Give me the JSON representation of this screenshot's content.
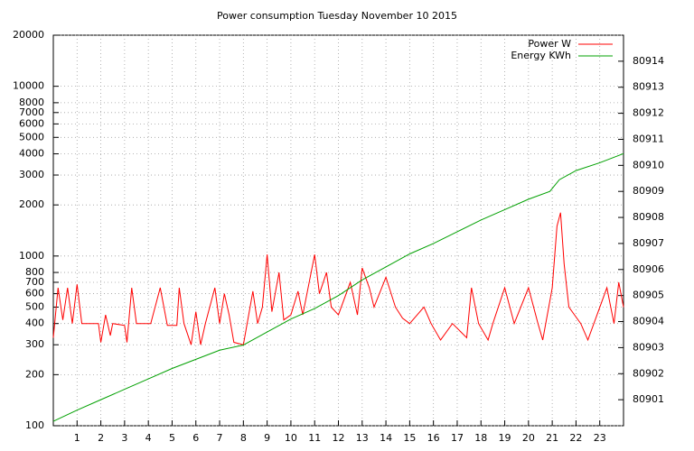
{
  "chart_data": {
    "type": "line",
    "title": "Power consumption Tuesday November 10 2015",
    "xlim": [
      0,
      24
    ],
    "xticks": [
      1,
      2,
      3,
      4,
      5,
      6,
      7,
      8,
      9,
      10,
      11,
      12,
      13,
      14,
      15,
      16,
      17,
      18,
      19,
      20,
      21,
      22,
      23
    ],
    "ylim": [
      100,
      20000
    ],
    "yticks": [
      100,
      200,
      300,
      400,
      500,
      600,
      700,
      800,
      1000,
      2000,
      3000,
      4000,
      5000,
      6000,
      7000,
      8000,
      10000,
      20000
    ],
    "log_y": true,
    "y2lim": [
      80900,
      80915
    ],
    "y2ticks": [
      80901,
      80902,
      80903,
      80904,
      80905,
      80906,
      80907,
      80908,
      80909,
      80910,
      80911,
      80912,
      80913,
      80914
    ],
    "grid": true,
    "legend": "top-right",
    "series": [
      {
        "name": "Power W",
        "color": "#ff0000",
        "x": [
          0,
          0.2,
          0.4,
          0.6,
          0.8,
          1.0,
          1.2,
          1.6,
          1.9,
          2.0,
          2.2,
          2.4,
          2.5,
          3.0,
          3.1,
          3.3,
          3.5,
          3.9,
          4.1,
          4.5,
          4.8,
          5.2,
          5.3,
          5.5,
          5.8,
          6.0,
          6.2,
          6.4,
          6.8,
          7.0,
          7.2,
          7.4,
          7.6,
          8.0,
          8.4,
          8.6,
          8.8,
          9.0,
          9.2,
          9.5,
          9.7,
          10.0,
          10.3,
          10.5,
          11.0,
          11.2,
          11.5,
          11.7,
          12.0,
          12.5,
          12.8,
          13.0,
          13.3,
          13.5,
          14.0,
          14.4,
          14.7,
          15.0,
          15.6,
          15.9,
          16.3,
          16.8,
          17.4,
          17.6,
          17.9,
          18.3,
          18.5,
          19.0,
          19.4,
          20.0,
          20.4,
          20.6,
          21.0,
          21.2,
          21.35,
          21.5,
          21.7,
          22.2,
          22.5,
          23.3,
          23.6,
          23.8,
          24.0
        ],
        "values": [
          330,
          650,
          420,
          650,
          400,
          680,
          400,
          400,
          400,
          310,
          450,
          340,
          400,
          390,
          310,
          650,
          400,
          400,
          400,
          650,
          390,
          390,
          650,
          400,
          300,
          470,
          300,
          400,
          650,
          400,
          600,
          450,
          310,
          300,
          620,
          400,
          500,
          1020,
          470,
          800,
          420,
          450,
          620,
          450,
          1020,
          600,
          800,
          500,
          450,
          700,
          450,
          850,
          650,
          500,
          750,
          500,
          430,
          400,
          500,
          400,
          320,
          400,
          330,
          650,
          400,
          320,
          400,
          650,
          400,
          650,
          400,
          320,
          650,
          1500,
          1800,
          900,
          500,
          400,
          320,
          650,
          400,
          700,
          500
        ]
      },
      {
        "name": "Energy KWh",
        "color": "#00a000",
        "axis": "y2",
        "x": [
          0,
          1,
          2,
          3,
          4,
          5,
          6,
          7,
          8,
          9,
          10,
          11,
          12,
          13,
          14,
          15,
          16,
          17,
          18,
          19,
          20,
          20.9,
          21.3,
          22,
          23,
          24
        ],
        "values": [
          80900.17,
          80900.6,
          80901.0,
          80901.4,
          80901.8,
          80902.2,
          80902.55,
          80902.9,
          80903.1,
          80903.6,
          80904.1,
          80904.5,
          80905.0,
          80905.6,
          80906.1,
          80906.6,
          80907.0,
          80907.45,
          80907.9,
          80908.3,
          80908.7,
          80909.0,
          80909.45,
          80909.8,
          80910.1,
          80910.45
        ]
      }
    ]
  }
}
